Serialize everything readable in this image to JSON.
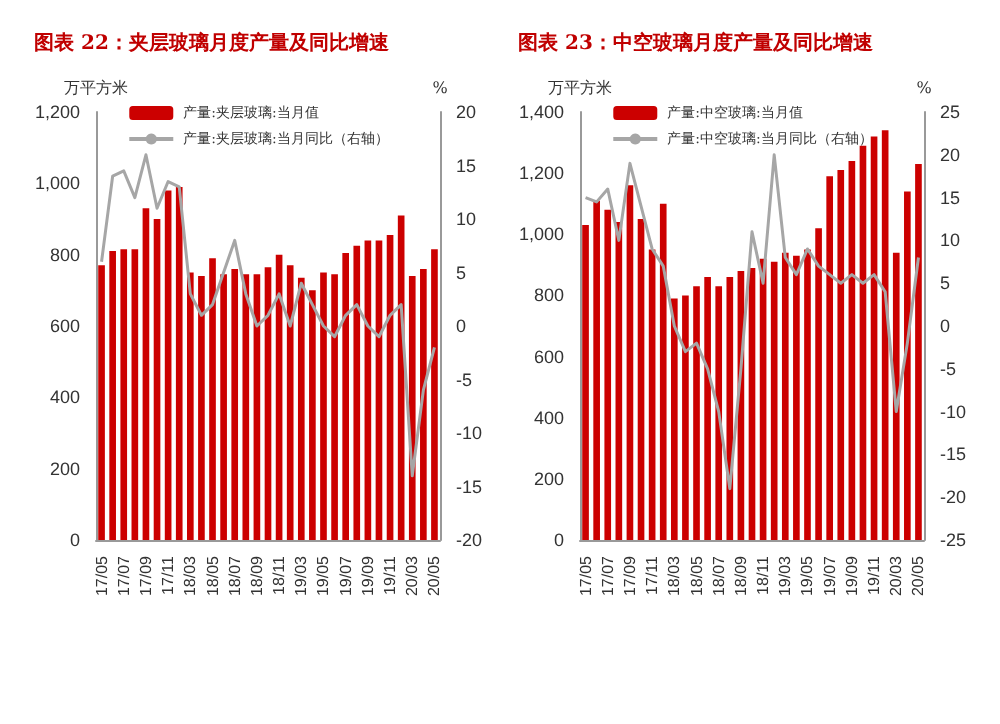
{
  "chart_data": [
    {
      "type": "bar",
      "title": "图表 22：夹层玻璃月度产量及同比增速",
      "ylabel": "万平方米",
      "y2label": "%",
      "categories": [
        "17/05",
        null,
        "17/07",
        null,
        "17/09",
        null,
        "17/11",
        null,
        "18/03",
        null,
        "18/05",
        null,
        "18/07",
        null,
        "18/09",
        null,
        "18/11",
        null,
        "19/03",
        null,
        "19/05",
        null,
        "19/07",
        null,
        "19/09",
        null,
        "19/11",
        null,
        "20/03",
        null,
        "20/05"
      ],
      "series": [
        {
          "name": "产量:夹层玻璃:当月值",
          "color": "#cc0000",
          "values": [
            770,
            810,
            815,
            815,
            930,
            900,
            980,
            990,
            750,
            740,
            790,
            745,
            760,
            745,
            745,
            765,
            800,
            770,
            735,
            700,
            750,
            745,
            805,
            825,
            840,
            840,
            855,
            910,
            740,
            760,
            815
          ]
        },
        {
          "name": "产量:夹层玻璃:当月同比（右轴）",
          "type": "line",
          "axis": "y2",
          "color": "#a6a6a6",
          "values": [
            6,
            14,
            14.5,
            12,
            16,
            11,
            13.5,
            13,
            3,
            1,
            2,
            5,
            8,
            3,
            0,
            1,
            3,
            0,
            4,
            2,
            0,
            -1,
            1,
            2,
            0,
            -1,
            1,
            2,
            -14,
            -6,
            -2
          ]
        }
      ],
      "ylim": [
        0,
        1200
      ],
      "yticks": [
        0,
        200,
        400,
        600,
        800,
        {
          "value": 1000,
          "label": "1,000"
        },
        {
          "value": 1200,
          "label": "1,200"
        }
      ],
      "y2lim": [
        -20,
        20
      ],
      "y2ticks": [
        -20,
        -15,
        -10,
        -5,
        0,
        5,
        10,
        15,
        20
      ],
      "grid": false,
      "legend": "top",
      "marker": "none"
    },
    {
      "type": "bar",
      "title": "图表 23：中空玻璃月度产量及同比增速",
      "ylabel": "万平方米",
      "y2label": "%",
      "categories": [
        "17/05",
        null,
        "17/07",
        null,
        "17/09",
        null,
        "17/11",
        null,
        "18/03",
        null,
        "18/05",
        null,
        "18/07",
        null,
        "18/09",
        null,
        "18/11",
        null,
        "19/03",
        null,
        "19/05",
        null,
        "19/07",
        null,
        "19/09",
        null,
        "19/11",
        null,
        "20/03",
        null,
        "20/05"
      ],
      "series": [
        {
          "name": "产量:中空玻璃:当月值",
          "color": "#cc0000",
          "values": [
            1030,
            1110,
            1080,
            1040,
            1160,
            1050,
            950,
            1100,
            790,
            800,
            830,
            860,
            830,
            860,
            880,
            890,
            920,
            910,
            940,
            930,
            950,
            1020,
            1190,
            1210,
            1240,
            1290,
            1320,
            1340,
            940,
            1140,
            1230
          ]
        },
        {
          "name": "产量:中空玻璃:当月同比（右轴）",
          "type": "line",
          "axis": "y2",
          "color": "#a6a6a6",
          "values": [
            15,
            14.5,
            16,
            10,
            19,
            14,
            9,
            7,
            0,
            -3,
            -2,
            -5,
            -10,
            -19,
            -5,
            11,
            5,
            20,
            8,
            6,
            9,
            7,
            6,
            5,
            6,
            5,
            6,
            4,
            -10,
            -2,
            8
          ]
        }
      ],
      "ylim": [
        0,
        1400
      ],
      "yticks": [
        0,
        200,
        400,
        600,
        800,
        {
          "value": 1000,
          "label": "1,000"
        },
        {
          "value": 1200,
          "label": "1,200"
        },
        {
          "value": 1400,
          "label": "1,400"
        }
      ],
      "y2lim": [
        -25,
        25
      ],
      "y2ticks": [
        -25,
        -20,
        -15,
        -10,
        -5,
        0,
        5,
        10,
        15,
        20,
        25
      ],
      "grid": false,
      "legend": "top",
      "marker": "none"
    }
  ]
}
